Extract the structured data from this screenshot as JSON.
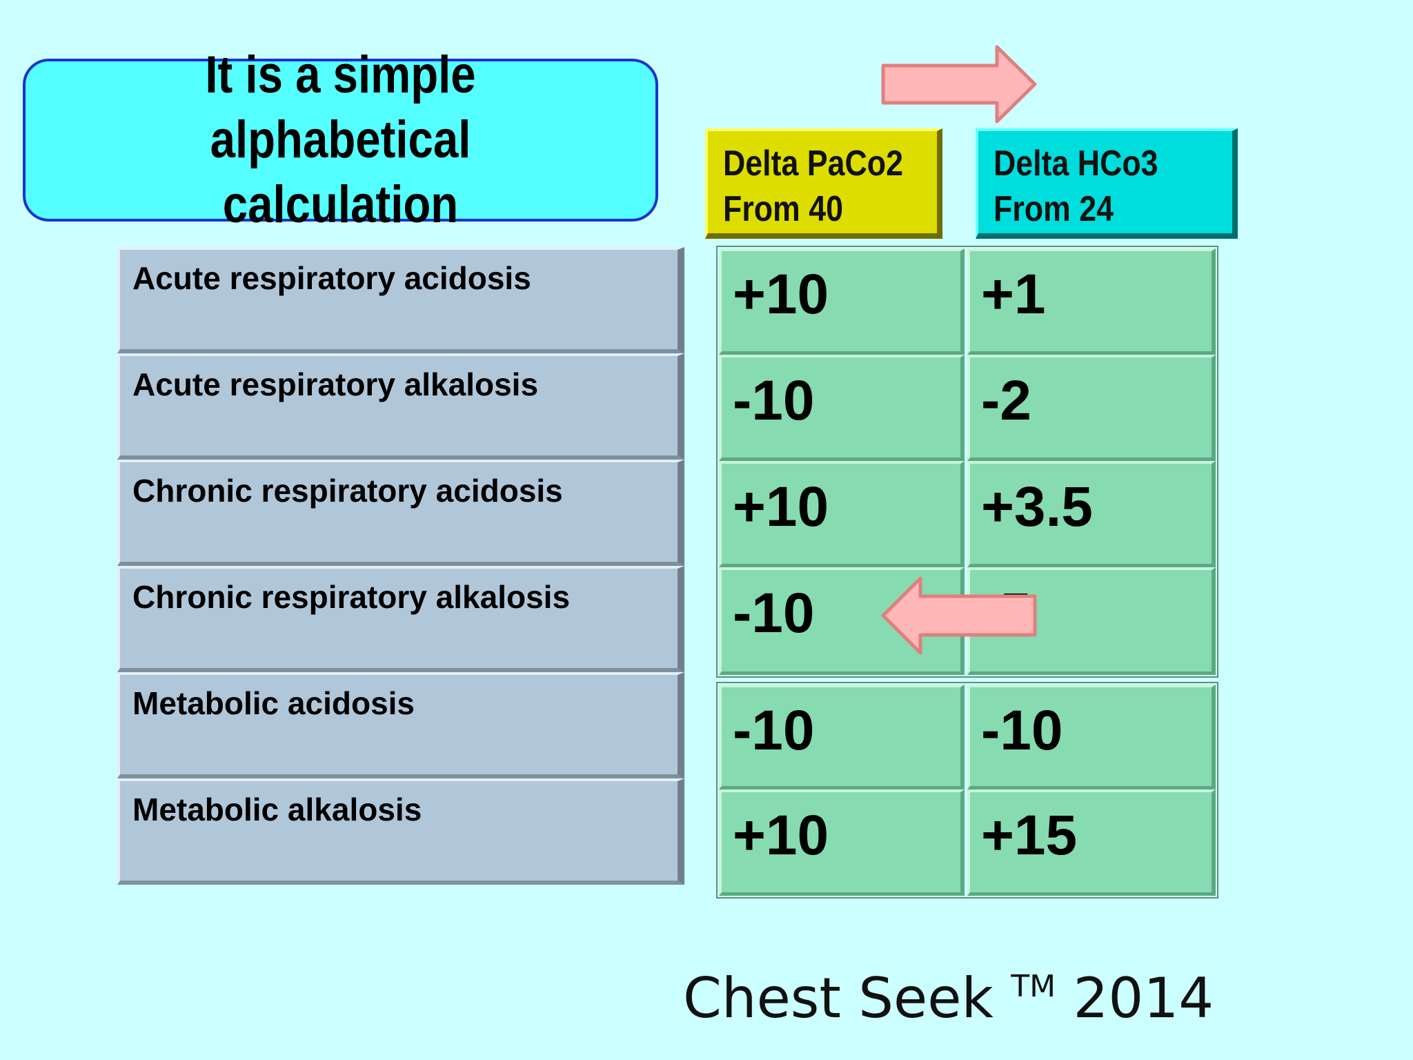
{
  "title": {
    "text": "It is a simple alphabetical\ncalculation"
  },
  "headers": [
    {
      "line1": "Delta PaCo2",
      "line2": "From 40"
    },
    {
      "line1": "Delta HCo3",
      "line2": "From 24"
    }
  ],
  "rows": [
    {
      "label": "Acute respiratory acidosis",
      "paco2": "+10",
      "hco3": "+1"
    },
    {
      "label": "Acute respiratory alkalosis",
      "paco2": "-10",
      "hco3": "-2"
    },
    {
      "label": "Chronic respiratory acidosis",
      "paco2": "+10",
      "hco3": "+3.5"
    },
    {
      "label": "Chronic respiratory alkalosis",
      "paco2": "-10",
      "hco3": "-5"
    },
    {
      "label": "Metabolic acidosis",
      "paco2": "-10",
      "hco3": "-10"
    },
    {
      "label": "Metabolic alkalosis",
      "paco2": "+10",
      "hco3": "+15"
    }
  ],
  "footer": {
    "brand": "Chest Seek",
    "mark": "TM",
    "year": "2014"
  },
  "colors": {
    "background": "#ccffff",
    "title_fill": "#55ffff",
    "title_border": "#1a33cc",
    "paco2_header": "#dddd00",
    "hco3_header": "#00dddd",
    "label_cell": "#b0c7d9",
    "value_cell": "#86dbb0",
    "arrow_fill": "#ffb7b7",
    "arrow_border": "#e07f7f"
  },
  "icons": {
    "top_arrow": "arrow-right-icon",
    "middle_arrow": "arrow-left-icon"
  }
}
